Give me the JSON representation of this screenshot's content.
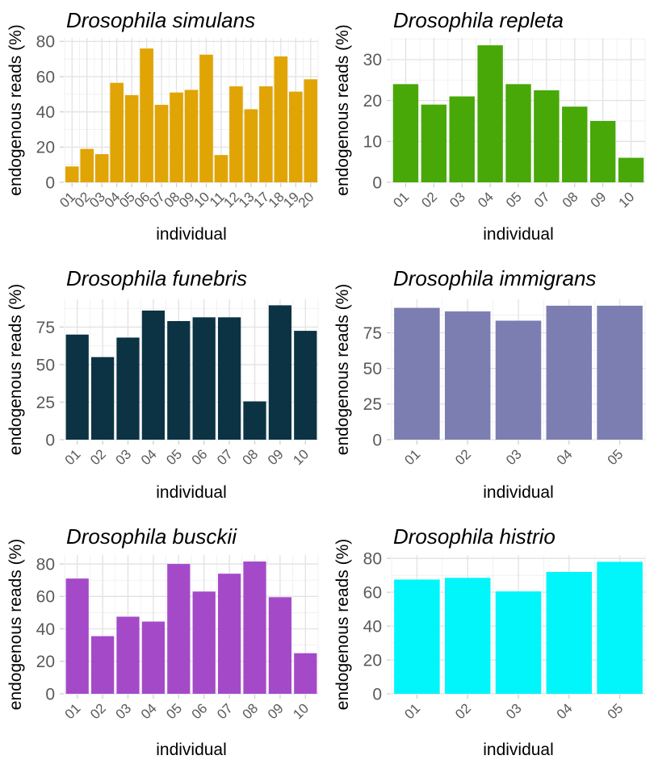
{
  "figure": {
    "xlabel": "individual",
    "ylabel": "endogenous reads (%)"
  },
  "style": {
    "background": "#ffffff",
    "grid_major": "#e2e2e2",
    "grid_minor": "#efefef",
    "tick_mark": "#cdcdcd",
    "tick_label_color": "#5a5a5a",
    "text_color": "#000000"
  },
  "chart_data": [
    {
      "type": "bar",
      "title": "Drosophila simulans",
      "xlabel": "individual",
      "ylabel": "endogenous reads (%)",
      "categories": [
        "01",
        "02",
        "03",
        "04",
        "05",
        "06",
        "07",
        "08",
        "09",
        "10",
        "11",
        "12",
        "13",
        "17",
        "18",
        "19",
        "20"
      ],
      "values": [
        9,
        19,
        16,
        56.5,
        49.5,
        76,
        44,
        51,
        52.5,
        72.5,
        15.5,
        54.5,
        41.5,
        54.5,
        71.5,
        51.5,
        58.5
      ],
      "yticks": [
        0,
        20,
        40,
        60,
        80
      ],
      "ylim": [
        0,
        82
      ],
      "color": "#E0A504",
      "grid": true,
      "legend": false
    },
    {
      "type": "bar",
      "title": "Drosophila repleta",
      "xlabel": "individual",
      "ylabel": "endogenous reads (%)",
      "categories": [
        "01",
        "02",
        "03",
        "04",
        "05",
        "07",
        "08",
        "09",
        "10"
      ],
      "values": [
        24,
        19,
        21,
        33.5,
        24,
        22.5,
        18.5,
        15,
        6
      ],
      "yticks": [
        0,
        10,
        20,
        30
      ],
      "ylim": [
        0,
        35.3
      ],
      "color": "#47A807",
      "grid": true,
      "legend": false
    },
    {
      "type": "bar",
      "title": "Drosophila funebris",
      "xlabel": "individual",
      "ylabel": "endogenous reads (%)",
      "categories": [
        "01",
        "02",
        "03",
        "04",
        "05",
        "06",
        "07",
        "08",
        "09",
        "10"
      ],
      "values": [
        70,
        55,
        68,
        86,
        79,
        81.5,
        81.5,
        25.5,
        89.5,
        72.5
      ],
      "yticks": [
        0,
        25,
        50,
        75
      ],
      "ylim": [
        0,
        93.5
      ],
      "color": "#0B3343",
      "grid": true,
      "legend": false
    },
    {
      "type": "bar",
      "title": "Drosophila immigrans",
      "xlabel": "individual",
      "ylabel": "endogenous reads (%)",
      "categories": [
        "01",
        "02",
        "03",
        "04",
        "05"
      ],
      "values": [
        92.5,
        90,
        83.5,
        94,
        94
      ],
      "yticks": [
        0,
        25,
        50,
        75
      ],
      "ylim": [
        0,
        98.5
      ],
      "color": "#7C7EB2",
      "grid": true,
      "legend": false
    },
    {
      "type": "bar",
      "title": "Drosophila busckii",
      "xlabel": "individual",
      "ylabel": "endogenous reads (%)",
      "categories": [
        "01",
        "02",
        "03",
        "04",
        "05",
        "06",
        "07",
        "08",
        "09",
        "10"
      ],
      "values": [
        71,
        35.5,
        47.5,
        44.5,
        80,
        63,
        74,
        81.5,
        59.5,
        25
      ],
      "yticks": [
        0,
        20,
        40,
        60,
        80
      ],
      "ylim": [
        0,
        85.5
      ],
      "color": "#A44AC9",
      "grid": true,
      "legend": false
    },
    {
      "type": "bar",
      "title": "Drosophila histrio",
      "xlabel": "individual",
      "ylabel": "endogenous reads (%)",
      "categories": [
        "01",
        "02",
        "03",
        "04",
        "05"
      ],
      "values": [
        67.5,
        68.5,
        60.5,
        72,
        78
      ],
      "yticks": [
        0,
        20,
        40,
        60,
        80
      ],
      "ylim": [
        0,
        82
      ],
      "color": "#00F6FA",
      "grid": true,
      "legend": false
    }
  ]
}
